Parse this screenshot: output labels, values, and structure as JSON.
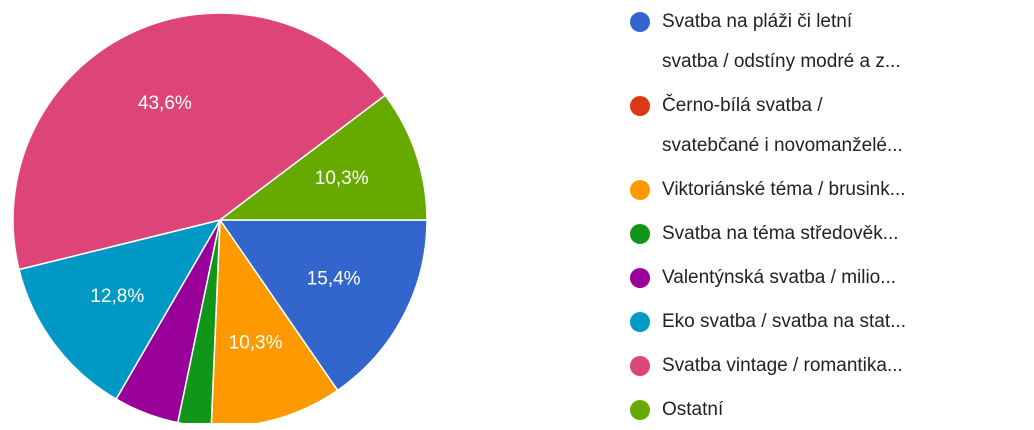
{
  "chart_data": {
    "type": "pie",
    "categories": [
      "Svatba na pláži či letní\nsvatba / odstíny modré a z...",
      "Černo-bílá svatba /\nsvatebčané i novomanželé...",
      "Viktoriánské téma / brusink...",
      "Svatba na téma středověk...",
      "Valentýnská svatba / milio...",
      "Eko svatba / svatba na stat...",
      "Svatba vintage / romantika...",
      "Ostatní"
    ],
    "values": [
      15.4,
      0,
      10.3,
      2.6,
      5.1,
      12.8,
      43.6,
      10.3
    ],
    "value_labels": [
      "15,4%",
      null,
      "10,3%",
      null,
      null,
      "12,8%",
      "43,6%",
      "10,3%"
    ],
    "colors": [
      "#3366cc",
      "#dc3912",
      "#ff9900",
      "#109618",
      "#990099",
      "#0099c6",
      "#dd4477",
      "#66aa00"
    ],
    "legend": "right"
  }
}
